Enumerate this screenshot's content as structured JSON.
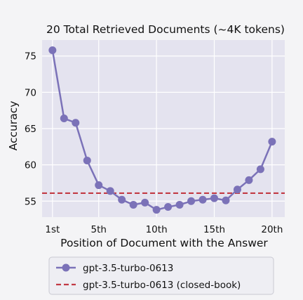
{
  "chart_data": {
    "type": "line",
    "title": "20 Total Retrieved Documents (~4K tokens)",
    "xlabel": "Position of Document with the Answer",
    "ylabel": "Accuracy",
    "xlim": [
      0.1,
      21.1
    ],
    "ylim": [
      52.8,
      77.2
    ],
    "xticks": [
      1,
      5,
      10,
      15,
      20
    ],
    "xtick_labels": [
      "1st",
      "5th",
      "10th",
      "15th",
      "20th"
    ],
    "yticks": [
      55,
      60,
      65,
      70,
      75
    ],
    "ytick_labels": [
      "55",
      "60",
      "65",
      "70",
      "75"
    ],
    "grid": true,
    "legend_position": "bottom, below chart",
    "background": "#e4e3ef",
    "series": [
      {
        "name": "gpt-3.5-turbo-0613",
        "style": "line-with-markers",
        "color": "#7b72b8",
        "x": [
          1,
          2,
          3,
          4,
          5,
          6,
          7,
          8,
          9,
          10,
          11,
          12,
          13,
          14,
          15,
          16,
          17,
          18,
          19,
          20
        ],
        "values": [
          75.8,
          66.4,
          65.8,
          60.6,
          57.2,
          56.4,
          55.2,
          54.5,
          54.8,
          53.8,
          54.2,
          54.5,
          55.0,
          55.2,
          55.4,
          55.1,
          56.6,
          57.9,
          59.4,
          63.2
        ]
      },
      {
        "name": "gpt-3.5-turbo-0613 (closed-book)",
        "style": "dashed",
        "color": "#c23a44",
        "constant": 56.1
      }
    ]
  }
}
